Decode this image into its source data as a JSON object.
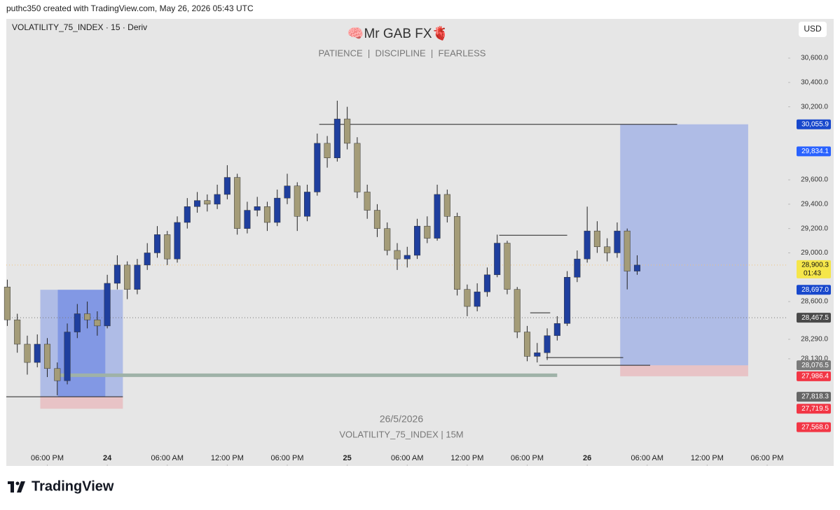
{
  "header": "puthc350 created with TradingView.com, May 26, 2026 05:43 UTC",
  "footer_logo": "TradingView",
  "chart_data": {
    "type": "candlestick",
    "symbol": "VOLATILITY_75_INDEX · 15 · Deriv",
    "currency": "USD",
    "title": "🧠Mr GAB FX🫀",
    "subtitle": "PATIENCE  |  DISCIPLINE  |  FEARLESS",
    "watermark_date": "26/5/2026",
    "watermark_symbol": "VOLATILITY_75_INDEX | 15M",
    "up_color": "#1f3f9e",
    "down_color": "#a49c78",
    "wick_color": "#222222",
    "x": [
      -4,
      -3,
      -2,
      -1,
      0,
      1,
      2,
      3,
      4,
      5,
      6,
      7,
      8,
      9,
      10,
      11,
      12,
      13,
      14,
      15,
      16,
      17,
      18,
      19,
      20,
      21,
      22,
      23,
      24,
      25,
      26,
      27,
      28,
      29,
      30,
      31,
      32,
      33,
      34,
      35,
      36,
      37,
      38,
      39,
      40,
      41,
      42,
      43,
      44,
      45,
      46,
      47,
      48,
      49,
      50,
      51,
      52,
      53,
      54,
      55,
      56,
      57,
      58,
      59
    ],
    "open": [
      28720,
      28450,
      28250,
      28100,
      28250,
      28050,
      27950,
      28350,
      28500,
      28450,
      28400,
      28750,
      28900,
      28700,
      28900,
      29000,
      29150,
      28950,
      29250,
      29380,
      29430,
      29400,
      29480,
      29620,
      29200,
      29350,
      29380,
      29250,
      29450,
      29550,
      29300,
      29500,
      29900,
      29780,
      30100,
      29900,
      29500,
      29350,
      29200,
      29020,
      28950,
      28980,
      29220,
      29120,
      29480,
      29300,
      28700,
      28560,
      28680,
      28820,
      29080,
      28700,
      28350,
      28150,
      28180,
      28320,
      28420,
      28800,
      28950,
      29180,
      29050,
      29000,
      29180,
      28850
    ],
    "high": [
      28780,
      28500,
      28320,
      28330,
      28300,
      28100,
      28420,
      28580,
      28600,
      28520,
      28820,
      28980,
      28930,
      28950,
      29080,
      29220,
      29180,
      29300,
      29450,
      29500,
      29480,
      29560,
      29720,
      29650,
      29420,
      29460,
      29420,
      29520,
      29650,
      29580,
      29560,
      29980,
      29960,
      30250,
      30200,
      29950,
      29560,
      29400,
      29250,
      29080,
      29050,
      29280,
      29300,
      29560,
      29520,
      29330,
      28740,
      28750,
      28880,
      29150,
      29100,
      28720,
      28400,
      28260,
      28380,
      28480,
      28850,
      29020,
      29380,
      29260,
      29120,
      29250,
      29200,
      28980
    ],
    "low": [
      28400,
      28180,
      28000,
      28060,
      27980,
      27830,
      27920,
      28300,
      28380,
      28320,
      28380,
      28700,
      28620,
      28660,
      28860,
      28960,
      28900,
      28920,
      29200,
      29330,
      29340,
      29360,
      29440,
      29150,
      29160,
      29300,
      29180,
      29220,
      29400,
      29180,
      29260,
      29470,
      29700,
      29750,
      29850,
      29450,
      29280,
      29130,
      28980,
      28860,
      28880,
      28950,
      29080,
      29100,
      29250,
      28650,
      28480,
      28520,
      28640,
      28800,
      28660,
      28300,
      28110,
      28100,
      28120,
      28280,
      28400,
      28760,
      28920,
      29000,
      28930,
      28960,
      28700,
      28820
    ],
    "close": [
      28450,
      28250,
      28100,
      28250,
      28050,
      27950,
      28350,
      28500,
      28450,
      28400,
      28750,
      28900,
      28700,
      28900,
      29000,
      29150,
      28950,
      29250,
      29380,
      29430,
      29400,
      29480,
      29620,
      29200,
      29350,
      29380,
      29250,
      29450,
      29550,
      29300,
      29500,
      29900,
      29780,
      30100,
      29900,
      29500,
      29350,
      29200,
      29020,
      28950,
      28980,
      29220,
      29120,
      29480,
      29300,
      28700,
      28560,
      28680,
      28820,
      29080,
      28700,
      28350,
      28150,
      28180,
      28320,
      28420,
      28800,
      28950,
      29180,
      29050,
      29000,
      29180,
      28850,
      28900
    ],
    "xlim": [
      -4.1,
      74.1
    ],
    "xticks": [
      {
        "value": 0,
        "label": "06:00 PM"
      },
      {
        "value": 6,
        "label": "24"
      },
      {
        "value": 12,
        "label": "06:00 AM"
      },
      {
        "value": 18,
        "label": "12:00 PM"
      },
      {
        "value": 24,
        "label": "06:00 PM"
      },
      {
        "value": 30,
        "label": "25"
      },
      {
        "value": 36,
        "label": "06:00 AM"
      },
      {
        "value": 42,
        "label": "12:00 PM"
      },
      {
        "value": 48,
        "label": "06:00 PM"
      },
      {
        "value": 54,
        "label": "26"
      },
      {
        "value": 60,
        "label": "06:00 AM"
      },
      {
        "value": 66,
        "label": "12:00 PM"
      },
      {
        "value": 72,
        "label": "06:00 PM"
      }
    ],
    "ylim": [
      27250,
      30922
    ],
    "yticks": [
      {
        "value": 30600,
        "label": "30,600.0"
      },
      {
        "value": 30400,
        "label": "30,400.0"
      },
      {
        "value": 30200,
        "label": "30,200.0"
      },
      {
        "value": 29600,
        "label": "29,600.0"
      },
      {
        "value": 29400,
        "label": "29,400.0"
      },
      {
        "value": 29200,
        "label": "29,200.0"
      },
      {
        "value": 29000,
        "label": "29,000.0"
      },
      {
        "value": 28600,
        "label": "28,600.0"
      },
      {
        "value": 28290,
        "label": "28,290.0"
      },
      {
        "value": 28130,
        "label": "28,130.0"
      }
    ],
    "price_labels": [
      {
        "value": 30055.9,
        "label": "30,055.9",
        "color": "#1848cc"
      },
      {
        "value": 29834.1,
        "label": "29,834.1",
        "color": "#2962ff"
      },
      {
        "value": 28900.3,
        "label": "28,900.3",
        "color": "#f5e64a",
        "countdown": "01:43"
      },
      {
        "value": 28697.0,
        "label": "28,697.0",
        "color": "#1848cc"
      },
      {
        "value": 28467.5,
        "label": "28,467.5",
        "color": "#4a4a4a"
      },
      {
        "value": 28076.5,
        "label": "28,076.5",
        "color": "#7a7a7a"
      },
      {
        "value": 27986.4,
        "label": "27,986.4",
        "color": "#f23645"
      },
      {
        "value": 27818.3,
        "label": "27,818.3",
        "color": "#666666"
      },
      {
        "value": 27719.5,
        "label": "27,719.5",
        "color": "#f23645"
      },
      {
        "value": 27568.0,
        "label": "27,568.0",
        "color": "#f23645"
      }
    ],
    "positions": [
      {
        "x_start": -0.7,
        "x_end": 7.56,
        "target": 28697.0,
        "entry": 27818.3,
        "stop": 27719.5
      },
      {
        "x_start": 57.3,
        "x_end": 70.1,
        "target": 30055.9,
        "entry": 28076.5,
        "stop": 27986.4
      }
    ],
    "boxes": [
      {
        "x_start": 1.05,
        "x_end": 5.8,
        "top": 28697.0,
        "bottom": 27818.3
      }
    ],
    "lines": [
      {
        "value": 28900.3,
        "x_start": -4.1,
        "x_end": 74.1,
        "color": "#f0c27a",
        "style": "dotted"
      },
      {
        "value": 28467.5,
        "x_start": -4.1,
        "x_end": 74.1,
        "color": "#777777",
        "style": "dotted"
      },
      {
        "value": 30055.9,
        "x_start": 27.2,
        "x_end": 63,
        "color": "#222222",
        "style": "solid"
      },
      {
        "value": 27818.3,
        "x_start": -4.1,
        "x_end": 7.56,
        "color": "#222222",
        "style": "solid"
      },
      {
        "value": 27995,
        "x_start": 0.9,
        "x_end": 51,
        "color": "#9fb2a8",
        "style": "thick"
      },
      {
        "value": 29145,
        "x_start": 45.2,
        "x_end": 52,
        "color": "#222222",
        "style": "solid"
      },
      {
        "value": 28140,
        "x_start": 49.9,
        "x_end": 57.6,
        "color": "#222222",
        "style": "solid"
      },
      {
        "value": 28076.5,
        "x_start": 49.2,
        "x_end": 60.3,
        "color": "#222222",
        "style": "solid"
      },
      {
        "value": 28508,
        "x_start": 48.3,
        "x_end": 50.3,
        "color": "#222222",
        "style": "solid"
      }
    ]
  }
}
